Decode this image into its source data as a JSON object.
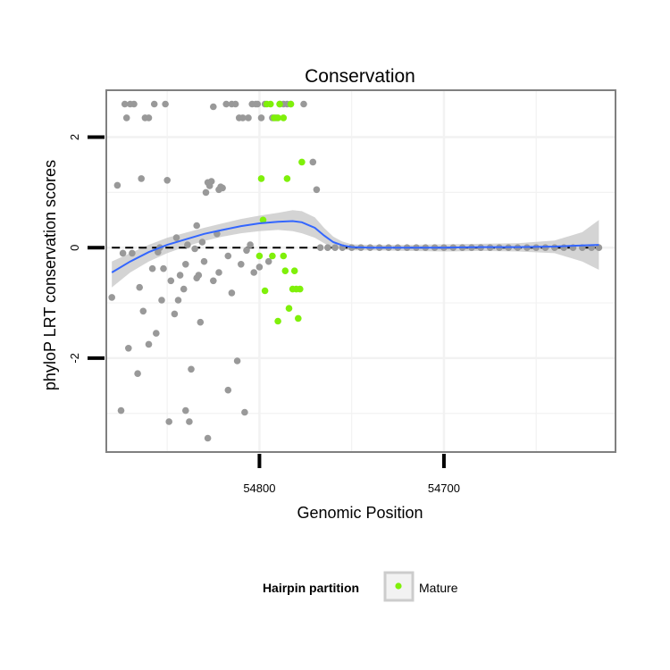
{
  "chart_data": {
    "type": "scatter",
    "title": "Conservation",
    "xlabel": "Genomic Position",
    "ylabel": "phyloP LRT conservation scores",
    "x_reversed": true,
    "xlim": [
      54883,
      54607
    ],
    "ylim": [
      -3.7,
      2.85
    ],
    "x_ticks": [
      {
        "value": 54800,
        "label": "54800"
      },
      {
        "value": 54700,
        "label": "54700"
      }
    ],
    "y_ticks": [
      {
        "value": 2,
        "label": "2"
      },
      {
        "value": 0,
        "label": "0"
      },
      {
        "value": -2,
        "label": "-2"
      }
    ],
    "grid": true,
    "reference_line": {
      "y": 0,
      "style": "dashed",
      "color": "#000000"
    },
    "colors": {
      "other": "#999999",
      "mature": "#7ff00a",
      "smooth_line": "#3366ff",
      "confidence_band": "#cccccc",
      "panel_border": "#808080",
      "grid": "#f2f2f2"
    },
    "legend": {
      "title": "Hairpin partition",
      "position": "bottom",
      "entries": [
        {
          "label": "Mature",
          "color": "#7ff00a"
        }
      ]
    },
    "series": [
      {
        "name": "Other",
        "points": [
          [
            54880,
            -0.9
          ],
          [
            54877,
            1.13
          ],
          [
            54875,
            -2.95
          ],
          [
            54874,
            -0.1
          ],
          [
            54873,
            2.6
          ],
          [
            54872,
            2.35
          ],
          [
            54871,
            -1.82
          ],
          [
            54870,
            2.6
          ],
          [
            54869,
            -0.1
          ],
          [
            54868,
            2.6
          ],
          [
            54866,
            -2.28
          ],
          [
            54865,
            -0.72
          ],
          [
            54864,
            1.25
          ],
          [
            54863,
            -1.15
          ],
          [
            54862,
            2.35
          ],
          [
            54860,
            -1.75
          ],
          [
            54860,
            2.35
          ],
          [
            54858,
            -0.38
          ],
          [
            54857,
            2.6
          ],
          [
            54856,
            -1.55
          ],
          [
            54855,
            -0.08
          ],
          [
            54854,
            0.0
          ],
          [
            54853,
            -0.95
          ],
          [
            54852,
            -0.38
          ],
          [
            54851,
            2.6
          ],
          [
            54850,
            1.22
          ],
          [
            54849,
            -3.15
          ],
          [
            54848,
            -0.6
          ],
          [
            54846,
            -1.2
          ],
          [
            54845,
            0.18
          ],
          [
            54844,
            -0.95
          ],
          [
            54843,
            -0.5
          ],
          [
            54841,
            -0.75
          ],
          [
            54840,
            -2.95
          ],
          [
            54840,
            -0.3
          ],
          [
            54839,
            0.05
          ],
          [
            54838,
            -3.15
          ],
          [
            54837,
            -2.2
          ],
          [
            54835,
            -0.02
          ],
          [
            54834,
            0.4
          ],
          [
            54834,
            -0.55
          ],
          [
            54833,
            -0.5
          ],
          [
            54832,
            -1.35
          ],
          [
            54831,
            0.1
          ],
          [
            54830,
            -0.25
          ],
          [
            54829,
            1.0
          ],
          [
            54828,
            -3.45
          ],
          [
            54828,
            1.18
          ],
          [
            54827,
            1.12
          ],
          [
            54826,
            1.2
          ],
          [
            54825,
            2.55
          ],
          [
            54825,
            -0.6
          ],
          [
            54823,
            0.25
          ],
          [
            54822,
            -0.45
          ],
          [
            54822,
            1.05
          ],
          [
            54821,
            1.1
          ],
          [
            54820,
            1.08
          ],
          [
            54818,
            2.6
          ],
          [
            54817,
            -2.58
          ],
          [
            54817,
            -0.15
          ],
          [
            54815,
            2.6
          ],
          [
            54815,
            -0.82
          ],
          [
            54813,
            2.6
          ],
          [
            54812,
            -2.05
          ],
          [
            54811,
            2.35
          ],
          [
            54810,
            -0.3
          ],
          [
            54809,
            2.35
          ],
          [
            54808,
            -2.98
          ],
          [
            54807,
            -0.05
          ],
          [
            54806,
            2.35
          ],
          [
            54805,
            0.05
          ],
          [
            54804,
            2.6
          ],
          [
            54803,
            -0.45
          ],
          [
            54802,
            2.6
          ],
          [
            54801,
            2.6
          ],
          [
            54800,
            -0.35
          ],
          [
            54799,
            2.35
          ],
          [
            54797,
            2.6
          ],
          [
            54795,
            -0.25
          ],
          [
            54793,
            2.35
          ],
          [
            54791,
            2.35
          ],
          [
            54789,
            2.6
          ],
          [
            54787,
            2.6
          ],
          [
            54785,
            2.6
          ],
          [
            54783,
            2.6
          ],
          [
            54776,
            2.6
          ],
          [
            54771,
            1.55
          ],
          [
            54769,
            1.05
          ],
          [
            54767,
            0.0
          ],
          [
            54763,
            0.0
          ],
          [
            54759,
            0.0
          ],
          [
            54755,
            0.0
          ],
          [
            54750,
            0.0
          ],
          [
            54745,
            0.0
          ],
          [
            54740,
            0.0
          ],
          [
            54735,
            0.0
          ],
          [
            54730,
            0.0
          ],
          [
            54725,
            0.0
          ],
          [
            54720,
            0.0
          ],
          [
            54715,
            0.0
          ],
          [
            54710,
            0.0
          ],
          [
            54705,
            0.0
          ],
          [
            54700,
            0.0
          ],
          [
            54695,
            0.0
          ],
          [
            54690,
            0.0
          ],
          [
            54685,
            0.0
          ],
          [
            54680,
            0.0
          ],
          [
            54675,
            0.0
          ],
          [
            54670,
            0.0
          ],
          [
            54665,
            0.0
          ],
          [
            54660,
            0.0
          ],
          [
            54655,
            0.0
          ],
          [
            54650,
            0.0
          ],
          [
            54645,
            0.0
          ],
          [
            54640,
            0.0
          ],
          [
            54635,
            0.0
          ],
          [
            54630,
            0.0
          ],
          [
            54625,
            0.0
          ],
          [
            54620,
            0.0
          ],
          [
            54616,
            0.0
          ]
        ]
      },
      {
        "name": "Mature",
        "points": [
          [
            54800,
            -0.15
          ],
          [
            54799,
            1.25
          ],
          [
            54798,
            0.5
          ],
          [
            54797,
            -0.78
          ],
          [
            54796,
            2.6
          ],
          [
            54794,
            2.6
          ],
          [
            54793,
            -0.15
          ],
          [
            54792,
            2.35
          ],
          [
            54790,
            -1.33
          ],
          [
            54790,
            2.35
          ],
          [
            54789,
            2.6
          ],
          [
            54787,
            -0.15
          ],
          [
            54787,
            2.35
          ],
          [
            54786,
            -0.42
          ],
          [
            54785,
            1.25
          ],
          [
            54784,
            -1.1
          ],
          [
            54783,
            2.6
          ],
          [
            54782,
            -0.75
          ],
          [
            54781,
            -0.42
          ],
          [
            54780,
            -0.75
          ],
          [
            54779,
            -1.28
          ],
          [
            54778,
            -0.75
          ],
          [
            54777,
            1.55
          ]
        ]
      }
    ],
    "smooth": {
      "points": [
        [
          54880,
          -0.45
        ],
        [
          54870,
          -0.25
        ],
        [
          54860,
          -0.08
        ],
        [
          54850,
          0.05
        ],
        [
          54840,
          0.15
        ],
        [
          54830,
          0.25
        ],
        [
          54820,
          0.32
        ],
        [
          54810,
          0.39
        ],
        [
          54800,
          0.44
        ],
        [
          54790,
          0.47
        ],
        [
          54782,
          0.48
        ],
        [
          54777,
          0.46
        ],
        [
          54770,
          0.36
        ],
        [
          54765,
          0.22
        ],
        [
          54760,
          0.1
        ],
        [
          54755,
          0.04
        ],
        [
          54750,
          0.01
        ],
        [
          54740,
          0.0
        ],
        [
          54720,
          0.0
        ],
        [
          54700,
          0.0
        ],
        [
          54680,
          0.01
        ],
        [
          54660,
          0.01
        ],
        [
          54640,
          0.02
        ],
        [
          54625,
          0.04
        ],
        [
          54616,
          0.05
        ]
      ],
      "upper": [
        [
          54880,
          -0.25
        ],
        [
          54870,
          -0.1
        ],
        [
          54860,
          0.05
        ],
        [
          54850,
          0.18
        ],
        [
          54840,
          0.27
        ],
        [
          54830,
          0.36
        ],
        [
          54820,
          0.44
        ],
        [
          54810,
          0.52
        ],
        [
          54800,
          0.58
        ],
        [
          54790,
          0.63
        ],
        [
          54782,
          0.68
        ],
        [
          54777,
          0.66
        ],
        [
          54770,
          0.55
        ],
        [
          54765,
          0.36
        ],
        [
          54760,
          0.2
        ],
        [
          54755,
          0.11
        ],
        [
          54750,
          0.06
        ],
        [
          54740,
          0.05
        ],
        [
          54720,
          0.05
        ],
        [
          54700,
          0.06
        ],
        [
          54680,
          0.07
        ],
        [
          54660,
          0.08
        ],
        [
          54640,
          0.13
        ],
        [
          54625,
          0.28
        ],
        [
          54616,
          0.5
        ]
      ],
      "lower": [
        [
          54880,
          -0.72
        ],
        [
          54870,
          -0.45
        ],
        [
          54860,
          -0.25
        ],
        [
          54850,
          -0.1
        ],
        [
          54840,
          0.02
        ],
        [
          54830,
          0.12
        ],
        [
          54820,
          0.2
        ],
        [
          54810,
          0.26
        ],
        [
          54800,
          0.3
        ],
        [
          54790,
          0.32
        ],
        [
          54782,
          0.3
        ],
        [
          54777,
          0.26
        ],
        [
          54770,
          0.18
        ],
        [
          54765,
          0.08
        ],
        [
          54760,
          0.0
        ],
        [
          54755,
          -0.03
        ],
        [
          54750,
          -0.05
        ],
        [
          54740,
          -0.05
        ],
        [
          54720,
          -0.06
        ],
        [
          54700,
          -0.07
        ],
        [
          54680,
          -0.06
        ],
        [
          54660,
          -0.07
        ],
        [
          54640,
          -0.1
        ],
        [
          54625,
          -0.25
        ],
        [
          54616,
          -0.4
        ]
      ]
    }
  }
}
